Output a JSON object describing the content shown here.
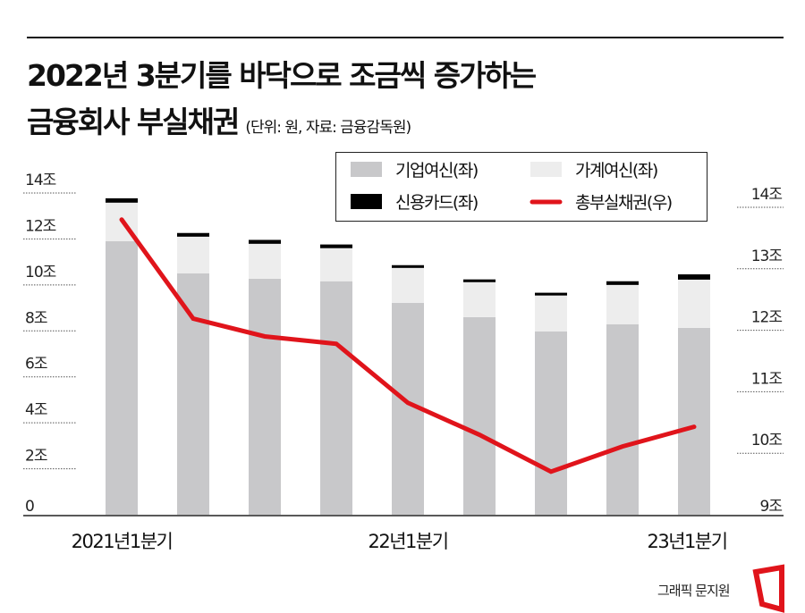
{
  "title_line1": "2022년 3분기를 바닥으로 조금씩 증가하는",
  "title_line2": "금융회사 부실채권",
  "subtitle": "(단위: 원, 자료: 금융감독원)",
  "credit": "그래픽 문지원",
  "colors": {
    "corporate": "#c8c8ca",
    "household": "#ededed",
    "card": "#000000",
    "total": "#e0141b"
  },
  "chart_data": {
    "type": "bar+line",
    "categories": [
      "2021년1분기",
      "",
      "",
      "",
      "22년1분기",
      "",
      "",
      "",
      "23년1분기"
    ],
    "x_tick_labels": [
      "2021년1분기",
      "22년1분기",
      "23년1분기"
    ],
    "series": [
      {
        "name": "기업여신(좌)",
        "type": "stacked-bar",
        "axis": "left",
        "values": [
          11.9,
          10.5,
          10.27,
          10.16,
          9.22,
          8.6,
          7.98,
          8.29,
          8.13
        ]
      },
      {
        "name": "가계여신(좌)",
        "type": "stacked-bar",
        "axis": "left",
        "values": [
          1.68,
          1.6,
          1.52,
          1.44,
          1.52,
          1.52,
          1.56,
          1.71,
          2.1
        ]
      },
      {
        "name": "신용카드(좌)",
        "type": "stacked-bar",
        "axis": "left",
        "values": [
          0.19,
          0.16,
          0.17,
          0.16,
          0.12,
          0.12,
          0.12,
          0.16,
          0.23
        ]
      },
      {
        "name": "총부실채권(우)",
        "type": "line",
        "axis": "right",
        "values": [
          13.8,
          12.19,
          11.9,
          11.78,
          10.82,
          10.3,
          9.7,
          10.11,
          10.43
        ]
      }
    ],
    "left_axis": {
      "ylim": [
        0,
        14
      ],
      "ticks": [
        0,
        2,
        4,
        6,
        8,
        10,
        12,
        14
      ],
      "tick_labels": [
        "0",
        "2조",
        "4조",
        "6조",
        "8조",
        "10조",
        "12조",
        "14조"
      ]
    },
    "right_axis": {
      "ylim": [
        9,
        14
      ],
      "ticks": [
        9,
        10,
        11,
        12,
        13,
        14
      ],
      "tick_labels": [
        "9조",
        "10조",
        "11조",
        "12조",
        "13조",
        "14조"
      ]
    },
    "grid": "dotted horizontal",
    "legend_placement": "top-right"
  }
}
